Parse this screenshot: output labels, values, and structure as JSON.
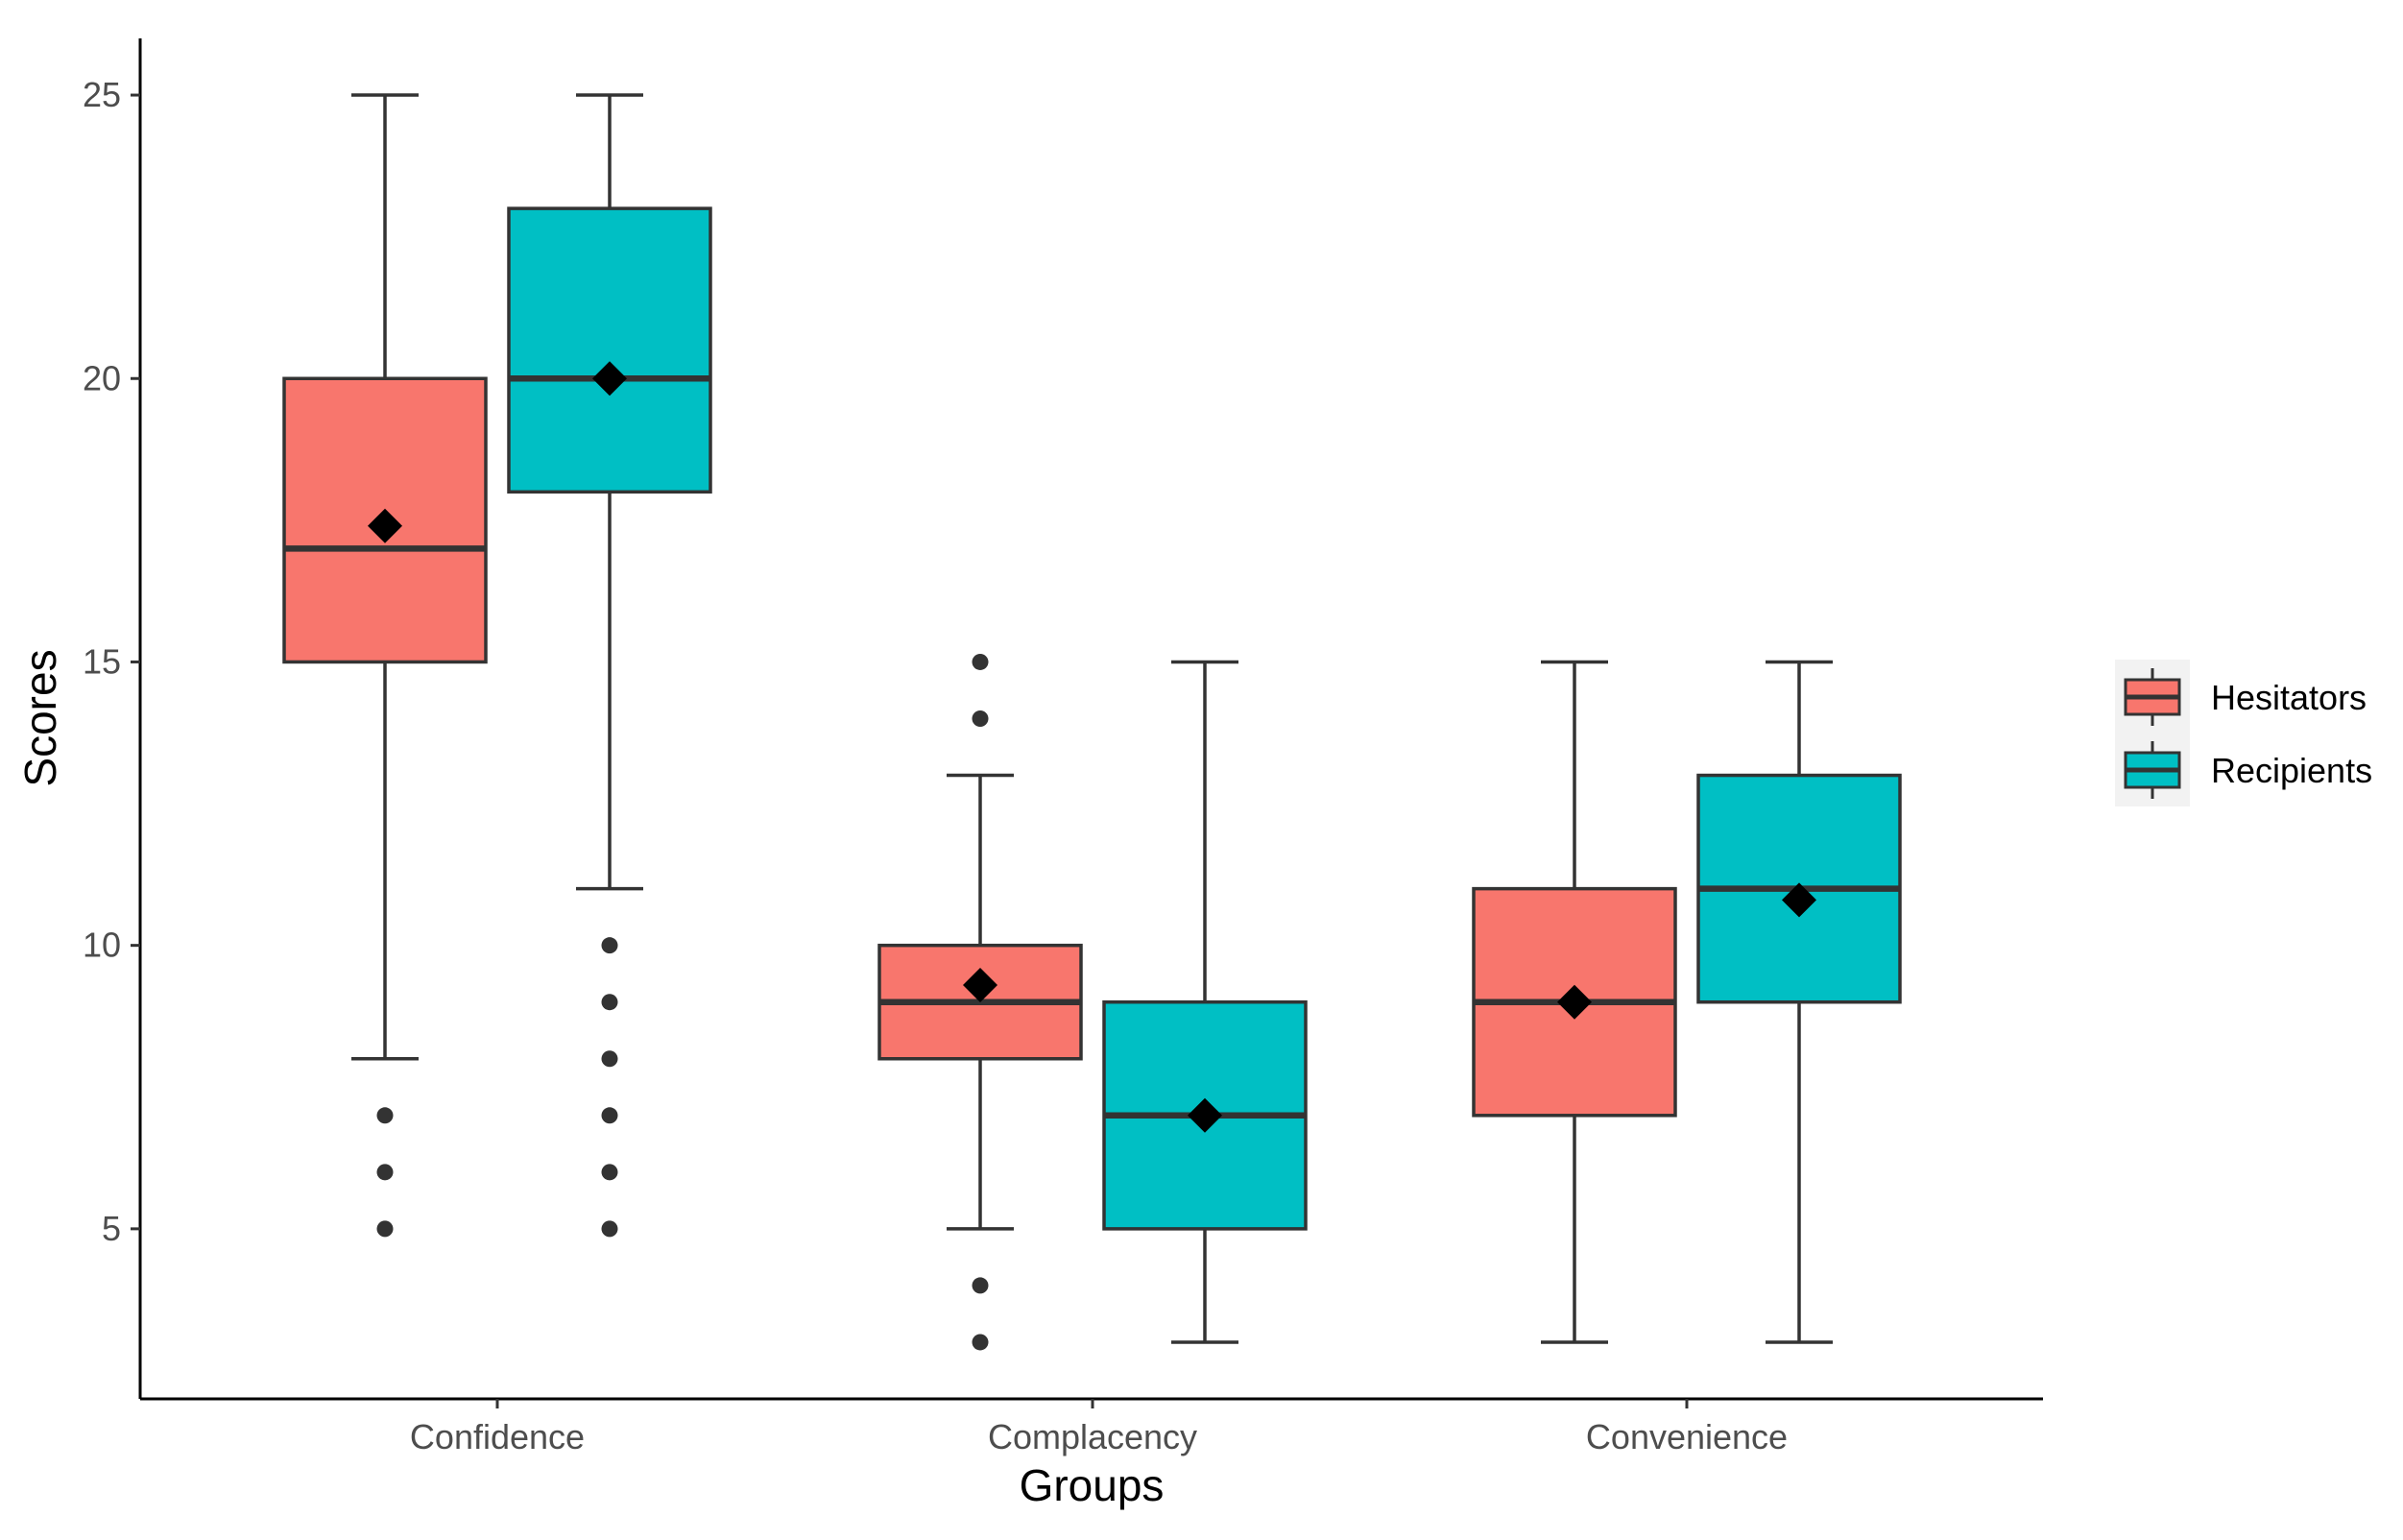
{
  "chart_data": {
    "type": "boxplot",
    "xlabel": "Groups",
    "ylabel": "Scores",
    "categories": [
      "Confidence",
      "Complacency",
      "Convenience"
    ],
    "yticks": [
      5,
      10,
      15,
      20,
      25
    ],
    "ylim": [
      2,
      26
    ],
    "legend_position": "right",
    "series": [
      {
        "name": "Hesitators",
        "color": "#F8766D",
        "boxes": [
          {
            "q1": 15,
            "median": 17,
            "q3": 20,
            "whisker_low": 8,
            "whisker_high": 25,
            "mean": 17.4,
            "outliers": [
              7,
              6,
              5
            ]
          },
          {
            "q1": 8,
            "median": 9,
            "q3": 10,
            "whisker_low": 5,
            "whisker_high": 13,
            "mean": 9.3,
            "outliers": [
              15,
              14,
              4,
              3
            ]
          },
          {
            "q1": 7,
            "median": 9,
            "q3": 11,
            "whisker_low": 3,
            "whisker_high": 15,
            "mean": 9.0,
            "outliers": []
          }
        ]
      },
      {
        "name": "Recipients",
        "color": "#00BFC4",
        "boxes": [
          {
            "q1": 18,
            "median": 20,
            "q3": 23,
            "whisker_low": 11,
            "whisker_high": 25,
            "mean": 20.0,
            "outliers": [
              10,
              9,
              8,
              7,
              6,
              5
            ]
          },
          {
            "q1": 5,
            "median": 7,
            "q3": 9,
            "whisker_low": 3,
            "whisker_high": 15,
            "mean": 7.0,
            "outliers": []
          },
          {
            "q1": 9,
            "median": 11,
            "q3": 13,
            "whisker_low": 3,
            "whisker_high": 15,
            "mean": 10.8,
            "outliers": []
          }
        ]
      }
    ]
  }
}
